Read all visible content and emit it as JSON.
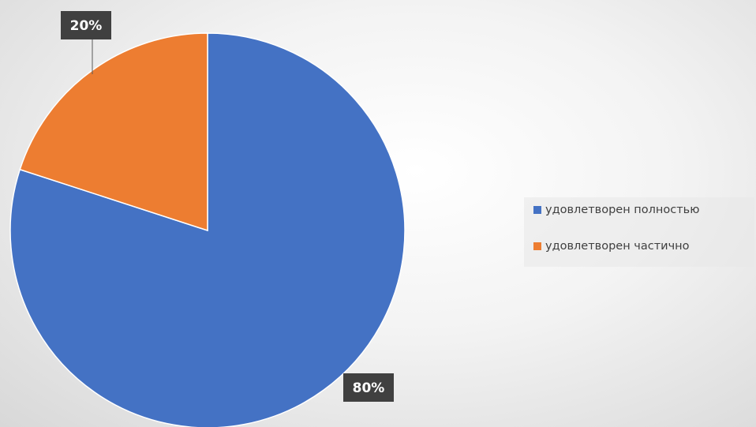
{
  "chart_data": {
    "type": "pie",
    "categories": [
      "удовлетворен полностью",
      "удовлетворен частично"
    ],
    "values": [
      80,
      20
    ],
    "data_labels": [
      "80%",
      "20%"
    ],
    "colors": [
      "#4472C4",
      "#ED7D31"
    ],
    "legend_position": "right",
    "start_angle_deg": 0,
    "direction": "clockwise"
  }
}
